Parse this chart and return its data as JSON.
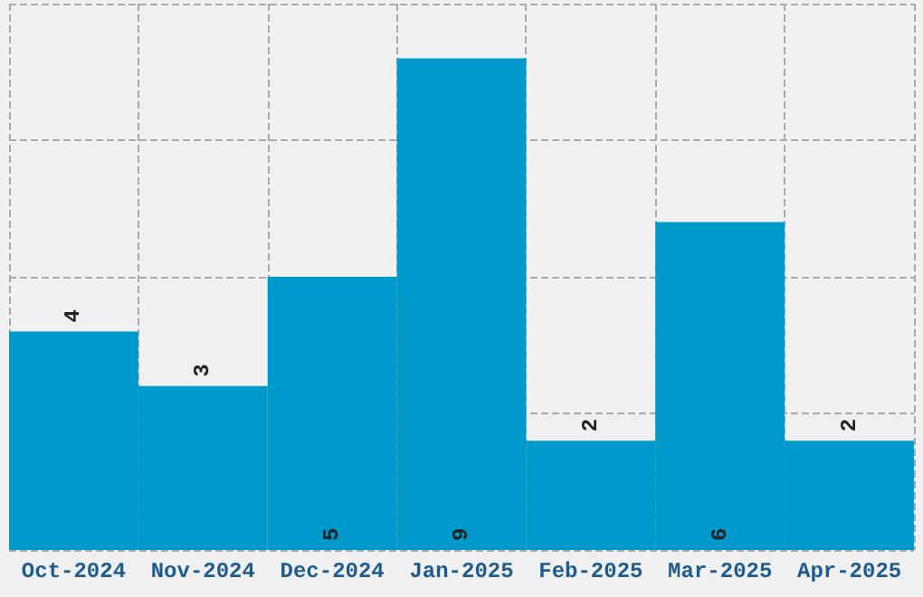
{
  "chart_data": {
    "type": "bar",
    "categories": [
      "Oct-2024",
      "Nov-2024",
      "Dec-2024",
      "Jan-2025",
      "Feb-2025",
      "Mar-2025",
      "Apr-2025"
    ],
    "values": [
      4,
      3,
      5,
      9,
      2,
      6,
      2
    ],
    "color": "#0099cc",
    "ylim": [
      0,
      10
    ],
    "yticks": [
      {
        "value": 0,
        "label": null
      },
      {
        "value": 2.5,
        "label": null
      },
      {
        "value": 5,
        "label": null
      },
      {
        "value": 7.5,
        "label": null
      },
      {
        "value": 10,
        "label": null
      }
    ],
    "tick_labels": "x",
    "grid": true,
    "data_labels": true
  }
}
